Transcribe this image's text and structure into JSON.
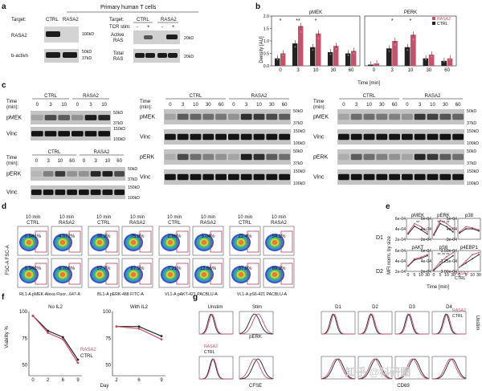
{
  "colors": {
    "ctrl": "#222222",
    "rasa2": "#c8506a",
    "rasa2_light": "#d9849a",
    "blot_bg": "#c9c9c9",
    "band": "#1c1c1c",
    "flow_box": "#b0415b",
    "watermark": "#d9d9d9"
  },
  "panel_a": {
    "letter": "a",
    "title": "Primary human T cells",
    "left": {
      "target_label": "Target:",
      "cols": [
        "CTRL",
        "RASA2"
      ],
      "rows": [
        {
          "label": "RASA2",
          "markers": [
            "100kD"
          ]
        },
        {
          "label": "b-activn",
          "markers": [
            "50kD",
            "37kD"
          ]
        }
      ]
    },
    "right": {
      "target_label": "Target:",
      "groups": [
        "CTRL",
        "RASA2"
      ],
      "stim_label": "TCR stim:",
      "stim": [
        "-",
        "+",
        "-",
        "+"
      ],
      "rows": [
        {
          "label": "Active RAS",
          "markers": [
            "20kD"
          ]
        },
        {
          "label": "Total RAS",
          "markers": [
            "20kD"
          ]
        }
      ]
    }
  },
  "panel_b": {
    "letter": "b",
    "ylabel": "Density [AU]",
    "xlabel": "Time [min]",
    "legend": [
      "RASA2",
      "CTRL"
    ],
    "charts": [
      {
        "title": "pMEK",
        "categories": [
          "0",
          "3",
          "10",
          "30",
          "60"
        ],
        "yticks": [
          "0.0",
          "0.5",
          "1.0",
          "1.5",
          "2.0"
        ],
        "ylim": [
          0,
          2.0
        ],
        "series": [
          {
            "name": "CTRL",
            "values": [
              0.3,
              0.9,
              0.75,
              0.55,
              0.5
            ]
          },
          {
            "name": "RASA2",
            "values": [
              0.5,
              1.6,
              1.3,
              0.8,
              0.6
            ]
          }
        ],
        "sig": [
          "*",
          "**",
          "*",
          "",
          ""
        ]
      },
      {
        "title": "PERK",
        "categories": [
          "0",
          "3",
          "10",
          "30",
          "60"
        ],
        "yticks": [
          "0.0",
          "0.5",
          "1.0",
          "1.5",
          "2.0"
        ],
        "ylim": [
          0,
          2.0
        ],
        "series": [
          {
            "name": "CTRL",
            "values": [
              0.05,
              0.7,
              0.75,
              0.3,
              0.2
            ]
          },
          {
            "name": "RASA2",
            "values": [
              0.1,
              1.0,
              1.25,
              0.45,
              0.3
            ]
          }
        ],
        "sig": [
          "",
          "*",
          "*",
          "",
          ""
        ]
      }
    ]
  },
  "panel_c": {
    "letter": "c",
    "time_label": "Time (min):",
    "left_top": {
      "groups": [
        "CTRL",
        "RASA2"
      ],
      "times": [
        "0",
        "3",
        "10",
        "0",
        "3",
        "10"
      ],
      "rows": [
        {
          "label": "pMEK",
          "markers": [
            "50kD",
            "37kD"
          ]
        },
        {
          "label": "Vinc",
          "markers": [
            "150kD",
            "100kD"
          ]
        }
      ]
    },
    "left_bottom": {
      "groups": [
        "CTRL",
        "RASA2"
      ],
      "times": [
        "0",
        "3",
        "10",
        "60",
        "0",
        "3",
        "10",
        "60"
      ],
      "rows": [
        {
          "label": "pERK",
          "markers": [
            "50kD",
            "37kD"
          ]
        },
        {
          "label": "Vinc",
          "markers": [
            "150kD",
            "100kD"
          ]
        }
      ]
    },
    "mid": {
      "groups": [
        "CTRL",
        "RASA2"
      ],
      "times": [
        "0",
        "3",
        "10",
        "30",
        "60",
        "0",
        "3",
        "10",
        "30",
        "60"
      ],
      "rows": [
        {
          "label": "pMEK",
          "markers": [
            "50kD",
            "37kD"
          ]
        },
        {
          "label": "Vinc",
          "markers": [
            "150kD",
            "100kD"
          ]
        },
        {
          "label": "pERK",
          "markers": [
            "50kD",
            "37kD"
          ]
        },
        {
          "label": "Vinc",
          "markers": [
            "150kD",
            "100kD"
          ]
        }
      ]
    },
    "right": {
      "groups": [
        "CTRL",
        "RASA2"
      ],
      "times": [
        "0",
        "3",
        "10",
        "30",
        "60",
        "0",
        "3",
        "10",
        "30",
        "60"
      ],
      "rows": [
        {
          "label": "pMEK",
          "markers": [
            "50kD",
            "37kD"
          ]
        },
        {
          "label": "Vinc",
          "markers": [
            "150kD",
            "100kD"
          ]
        },
        {
          "label": "pERK",
          "markers": [
            "50kD",
            "37kD"
          ]
        },
        {
          "label": "Vinc",
          "markers": [
            "150kD",
            "100kD"
          ]
        }
      ]
    }
  },
  "panel_d": {
    "letter": "d",
    "ylabel": "FSC-A FSC-A",
    "groups": [
      {
        "cols": [
          "10 min CTRL",
          "10 min RASA2"
        ],
        "values": [
          "0.841%",
          "4.072%",
          "5.942%",
          "9.708%"
        ],
        "xlabel": "RL1-A pMEK-Alexa Fluor...647-A"
      },
      {
        "cols": [
          "10 min CTRL",
          "10 min RASA2"
        ],
        "values": [
          "36.2%",
          "75.8%",
          "57.7%",
          "87.5%"
        ],
        "xlabel": "BL1-A pERK-488 FITC-A"
      },
      {
        "cols": [
          "10 min CTRL",
          "10 min RASA2"
        ],
        "values": [
          "2.96%",
          "5.04%",
          "7.21%",
          "12.66%"
        ],
        "xlabel": "VL1-A pAKT-421 PACBLU-A"
      },
      {
        "cols": [
          "10 min CTRL",
          "10 min RASA2"
        ],
        "values": [
          "22.4%",
          "54.1%",
          "37.0%",
          "69.2%"
        ],
        "xlabel": "VL1-A pS6-421 PACBLU-A"
      }
    ],
    "row_labels": [
      "D1",
      "D2"
    ]
  },
  "panel_e": {
    "letter": "e",
    "ylabel": "MFI norm. by size",
    "xlabel": "Time [min]",
    "legend": [
      "RASA2",
      "CTRL"
    ],
    "charts": [
      {
        "title": "pMEK",
        "yticks": [
          "6e-04",
          "4e-04",
          "2e-04"
        ],
        "ylim": [
          0.0002,
          0.0006
        ],
        "x": [
          0,
          5,
          10,
          30
        ],
        "series": [
          {
            "name": "CTRL",
            "values": [
              0.0003,
              0.00045,
              0.00038,
              0.0003
            ]
          },
          {
            "name": "RASA2",
            "values": [
              0.00032,
              0.0005,
              0.00044,
              0.00034
            ]
          }
        ],
        "sig": "**"
      },
      {
        "title": "pERK",
        "yticks": [
          "6e-04",
          "4e-04",
          "2e-04"
        ],
        "ylim": [
          0.0002,
          0.0006
        ],
        "x": [
          0,
          5,
          10,
          30
        ],
        "series": [
          {
            "name": "CTRL",
            "values": [
              0.00028,
              0.0005,
              0.00044,
              0.00034
            ]
          },
          {
            "name": "RASA2",
            "values": [
              0.0003,
              0.00056,
              0.0005,
              0.0004
            ]
          }
        ],
        "sig": "** ** **"
      },
      {
        "title": "p38",
        "yticks": [
          "5e-04",
          "4e-04",
          "3e-04"
        ],
        "ylim": [
          0.0003,
          0.0005
        ],
        "x": [
          0,
          5,
          10,
          30
        ],
        "series": [
          {
            "name": "CTRL",
            "values": [
              0.00036,
              0.0004,
              0.0004,
              0.00038
            ]
          },
          {
            "name": "RASA2",
            "values": [
              0.00037,
              0.00042,
              0.00041,
              0.00039
            ]
          }
        ],
        "sig": ""
      },
      {
        "title": "pAKT",
        "yticks": [
          "6e-04",
          "4e-04",
          "2e-04"
        ],
        "ylim": [
          0.0002,
          0.0006
        ],
        "x": [
          0,
          5,
          10,
          30
        ],
        "series": [
          {
            "name": "CTRL",
            "values": [
              0.0003,
              0.00042,
              0.00045,
              0.0005
            ]
          },
          {
            "name": "RASA2",
            "values": [
              0.00031,
              0.00044,
              0.00047,
              0.00052
            ]
          }
        ],
        "sig": ""
      },
      {
        "title": "pS6",
        "yticks": [
          "6e-04",
          "4e-04",
          "2e-04"
        ],
        "ylim": [
          0.0002,
          0.0006
        ],
        "x": [
          0,
          5,
          10,
          30
        ],
        "series": [
          {
            "name": "CTRL",
            "values": [
              0.00022,
              0.00033,
              0.00042,
              0.0005
            ]
          },
          {
            "name": "RASA2",
            "values": [
              0.00024,
              0.00038,
              0.00048,
              0.00056
            ]
          }
        ],
        "sig": "** ** **"
      },
      {
        "title": "p4EBP1",
        "yticks": [
          "3.50e-04",
          "3.25e-04",
          "3.00e-04"
        ],
        "ylim": [
          0.0003,
          0.00035
        ],
        "x": [
          0,
          5,
          10,
          30
        ],
        "series": [
          {
            "name": "CTRL",
            "values": [
              0.00031,
              0.00032,
              0.00033,
              0.00034
            ]
          },
          {
            "name": "RASA2",
            "values": [
              0.00031,
              0.000325,
              0.00034,
              0.000345
            ]
          }
        ],
        "sig": ""
      }
    ],
    "xticks": [
      "0",
      "5",
      "10",
      "30"
    ]
  },
  "panel_f": {
    "letter": "f",
    "ylabel": "Viability %",
    "xlabel": "Day",
    "legend": [
      "RASA2",
      "CTRL"
    ],
    "charts": [
      {
        "title": "No IL2",
        "categories": [
          "0",
          "2",
          "6",
          "9"
        ],
        "yticks": [
          "100",
          "75",
          "50"
        ],
        "ylim": [
          40,
          100
        ],
        "series": [
          {
            "name": "CTRL",
            "values": [
              96,
              82,
              76,
              55
            ]
          },
          {
            "name": "RASA2",
            "values": [
              96,
              80,
              74,
              52
            ]
          }
        ]
      },
      {
        "title": "With IL2",
        "categories": [
          "2",
          "6",
          "9"
        ],
        "yticks": [
          "100",
          "75",
          "50"
        ],
        "ylim": [
          40,
          100
        ],
        "series": [
          {
            "name": "CTRL",
            "values": [
              86,
              86,
              77
            ]
          },
          {
            "name": "RASA2",
            "values": [
              86,
              84,
              74
            ]
          }
        ]
      }
    ]
  },
  "panel_g": {
    "letter": "g",
    "left": {
      "cols": [
        "Unstim",
        "Stim"
      ],
      "mid_label": "pERK",
      "bottom_label": "CFSE",
      "legend": [
        "RASA2",
        "CTRL"
      ]
    },
    "right": {
      "cols": [
        "D1",
        "D2",
        "D3",
        "D4"
      ],
      "side_label": "Unstim",
      "bottom_label": "CD69",
      "legend": [
        "RASA2",
        "CTRL"
      ]
    }
  },
  "watermark": "知乎 @科研圈"
}
